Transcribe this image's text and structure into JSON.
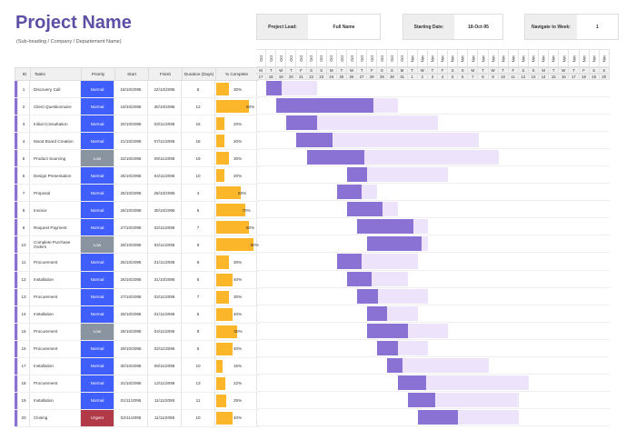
{
  "header": {
    "title": "Project Name",
    "subtitle": "(Sub-heading / Company / Departement Name)",
    "lead_label": "Project Lead:",
    "lead_value": "Full Name",
    "start_label": "Starting Date:",
    "start_value": "18-Oct-95",
    "nav_label": "Navigate to Week:",
    "nav_value": "1"
  },
  "columns": [
    "ID",
    "Tasks",
    "Priority",
    "Start",
    "Finish",
    "Duration (Days)",
    "% Complete"
  ],
  "colors": {
    "Normal": "#3f5efb",
    "Low": "#8a93a0",
    "Urgent": "#b23a48",
    "done": "#8a72d4",
    "remaining": "#ede3fb",
    "progress": "#fbb62a"
  },
  "timeline": {
    "months": [
      "Oct",
      "Oct",
      "Oct",
      "Oct",
      "Oct",
      "Oct",
      "Oct",
      "Oct",
      "Oct",
      "Oct",
      "Oct",
      "Oct",
      "Oct",
      "Oct",
      "Oct",
      "Nov",
      "Nov",
      "Nov",
      "Nov",
      "Nov",
      "Nov",
      "Nov",
      "Nov",
      "Nov",
      "Nov",
      "Nov",
      "Nov",
      "Nov",
      "Nov",
      "Nov",
      "Nov",
      "Nov",
      "Nov",
      "Nov",
      "Nov"
    ],
    "weekdays": [
      "M",
      "T",
      "W",
      "T",
      "F",
      "S",
      "S",
      "M",
      "T",
      "W",
      "T",
      "F",
      "S",
      "S",
      "M",
      "T",
      "W",
      "T",
      "F",
      "S",
      "S",
      "M",
      "T",
      "W",
      "T",
      "F",
      "S",
      "S",
      "M",
      "T",
      "W",
      "T",
      "F",
      "S",
      "S"
    ],
    "days": [
      "17",
      "18",
      "19",
      "20",
      "21",
      "22",
      "23",
      "24",
      "25",
      "26",
      "27",
      "28",
      "29",
      "30",
      "31",
      "1",
      "2",
      "3",
      "4",
      "5",
      "6",
      "7",
      "8",
      "9",
      "10",
      "11",
      "12",
      "13",
      "14",
      "15",
      "16",
      "17",
      "18",
      "19",
      "20"
    ]
  },
  "tasks": [
    {
      "id": "1",
      "name": "Discovery Call",
      "priority": "Normal",
      "start": "18/10/2095",
      "finish": "22/10/2095",
      "duration": "5",
      "pct": "30%",
      "offset": 1,
      "p": 30
    },
    {
      "id": "2",
      "name": "Client Questionnaire",
      "priority": "Normal",
      "start": "19/10/2095",
      "finish": "30/10/2095",
      "duration": "12",
      "pct": "80%",
      "offset": 2,
      "p": 80
    },
    {
      "id": "3",
      "name": "Initial Consultation",
      "priority": "Normal",
      "start": "20/10/2095",
      "finish": "03/11/2095",
      "duration": "15",
      "pct": "20%",
      "offset": 3,
      "p": 20
    },
    {
      "id": "4",
      "name": "Mood Board Creation",
      "priority": "Normal",
      "start": "21/10/2095",
      "finish": "07/11/2095",
      "duration": "18",
      "pct": "20%",
      "offset": 4,
      "p": 20
    },
    {
      "id": "5",
      "name": "Product Sourcing",
      "priority": "Low",
      "start": "22/10/2095",
      "finish": "09/11/2095",
      "duration": "19",
      "pct": "30%",
      "offset": 5,
      "p": 30
    },
    {
      "id": "6",
      "name": "Design Presentation",
      "priority": "Normal",
      "start": "26/10/2095",
      "finish": "04/11/2095",
      "duration": "10",
      "pct": "20%",
      "offset": 9,
      "p": 20
    },
    {
      "id": "7",
      "name": "Proposal",
      "priority": "Normal",
      "start": "25/10/2095",
      "finish": "28/10/2095",
      "duration": "4",
      "pct": "60%",
      "offset": 8,
      "p": 60
    },
    {
      "id": "8",
      "name": "Invoice",
      "priority": "Normal",
      "start": "26/10/2095",
      "finish": "30/10/2095",
      "duration": "5",
      "pct": "70%",
      "offset": 9,
      "p": 70
    },
    {
      "id": "9",
      "name": "Request Payment",
      "priority": "Normal",
      "start": "27/10/2095",
      "finish": "02/11/2095",
      "duration": "7",
      "pct": "80%",
      "offset": 10,
      "p": 80
    },
    {
      "id": "10",
      "name": "Complete Purchase Orders",
      "priority": "Low",
      "start": "28/10/2095",
      "finish": "02/11/2095",
      "duration": "6",
      "pct": "90%",
      "offset": 11,
      "p": 90
    },
    {
      "id": "11",
      "name": "Procurement",
      "priority": "Normal",
      "start": "25/10/2095",
      "finish": "01/11/2095",
      "duration": "8",
      "pct": "30%",
      "offset": 8,
      "p": 30
    },
    {
      "id": "12",
      "name": "Installation",
      "priority": "Normal",
      "start": "26/10/2095",
      "finish": "31/10/2095",
      "duration": "6",
      "pct": "40%",
      "offset": 9,
      "p": 40
    },
    {
      "id": "13",
      "name": "Procurement",
      "priority": "Normal",
      "start": "27/10/2095",
      "finish": "02/11/2095",
      "duration": "7",
      "pct": "30%",
      "offset": 10,
      "p": 30
    },
    {
      "id": "14",
      "name": "Installation",
      "priority": "Normal",
      "start": "28/10/2095",
      "finish": "01/11/2095",
      "duration": "5",
      "pct": "40%",
      "offset": 11,
      "p": 40
    },
    {
      "id": "15",
      "name": "Procurement",
      "priority": "Low",
      "start": "28/10/2095",
      "finish": "04/11/2095",
      "duration": "8",
      "pct": "50%",
      "offset": 11,
      "p": 50
    },
    {
      "id": "16",
      "name": "Procurement",
      "priority": "Normal",
      "start": "29/10/2095",
      "finish": "02/11/2095",
      "duration": "5",
      "pct": "40%",
      "offset": 12,
      "p": 40
    },
    {
      "id": "17",
      "name": "Installation",
      "priority": "Normal",
      "start": "30/10/2095",
      "finish": "08/11/2095",
      "duration": "10",
      "pct": "15%",
      "offset": 13,
      "p": 15
    },
    {
      "id": "18",
      "name": "Procurement",
      "priority": "Normal",
      "start": "31/10/2095",
      "finish": "12/11/2095",
      "duration": "13",
      "pct": "22%",
      "offset": 14,
      "p": 22
    },
    {
      "id": "19",
      "name": "Installation",
      "priority": "Normal",
      "start": "01/11/2095",
      "finish": "11/11/2095",
      "duration": "11",
      "pct": "25%",
      "offset": 15,
      "p": 25
    },
    {
      "id": "20",
      "name": "Closing",
      "priority": "Urgent",
      "start": "02/11/2095",
      "finish": "11/11/2095",
      "duration": "10",
      "pct": "40%",
      "offset": 16,
      "p": 40
    }
  ]
}
